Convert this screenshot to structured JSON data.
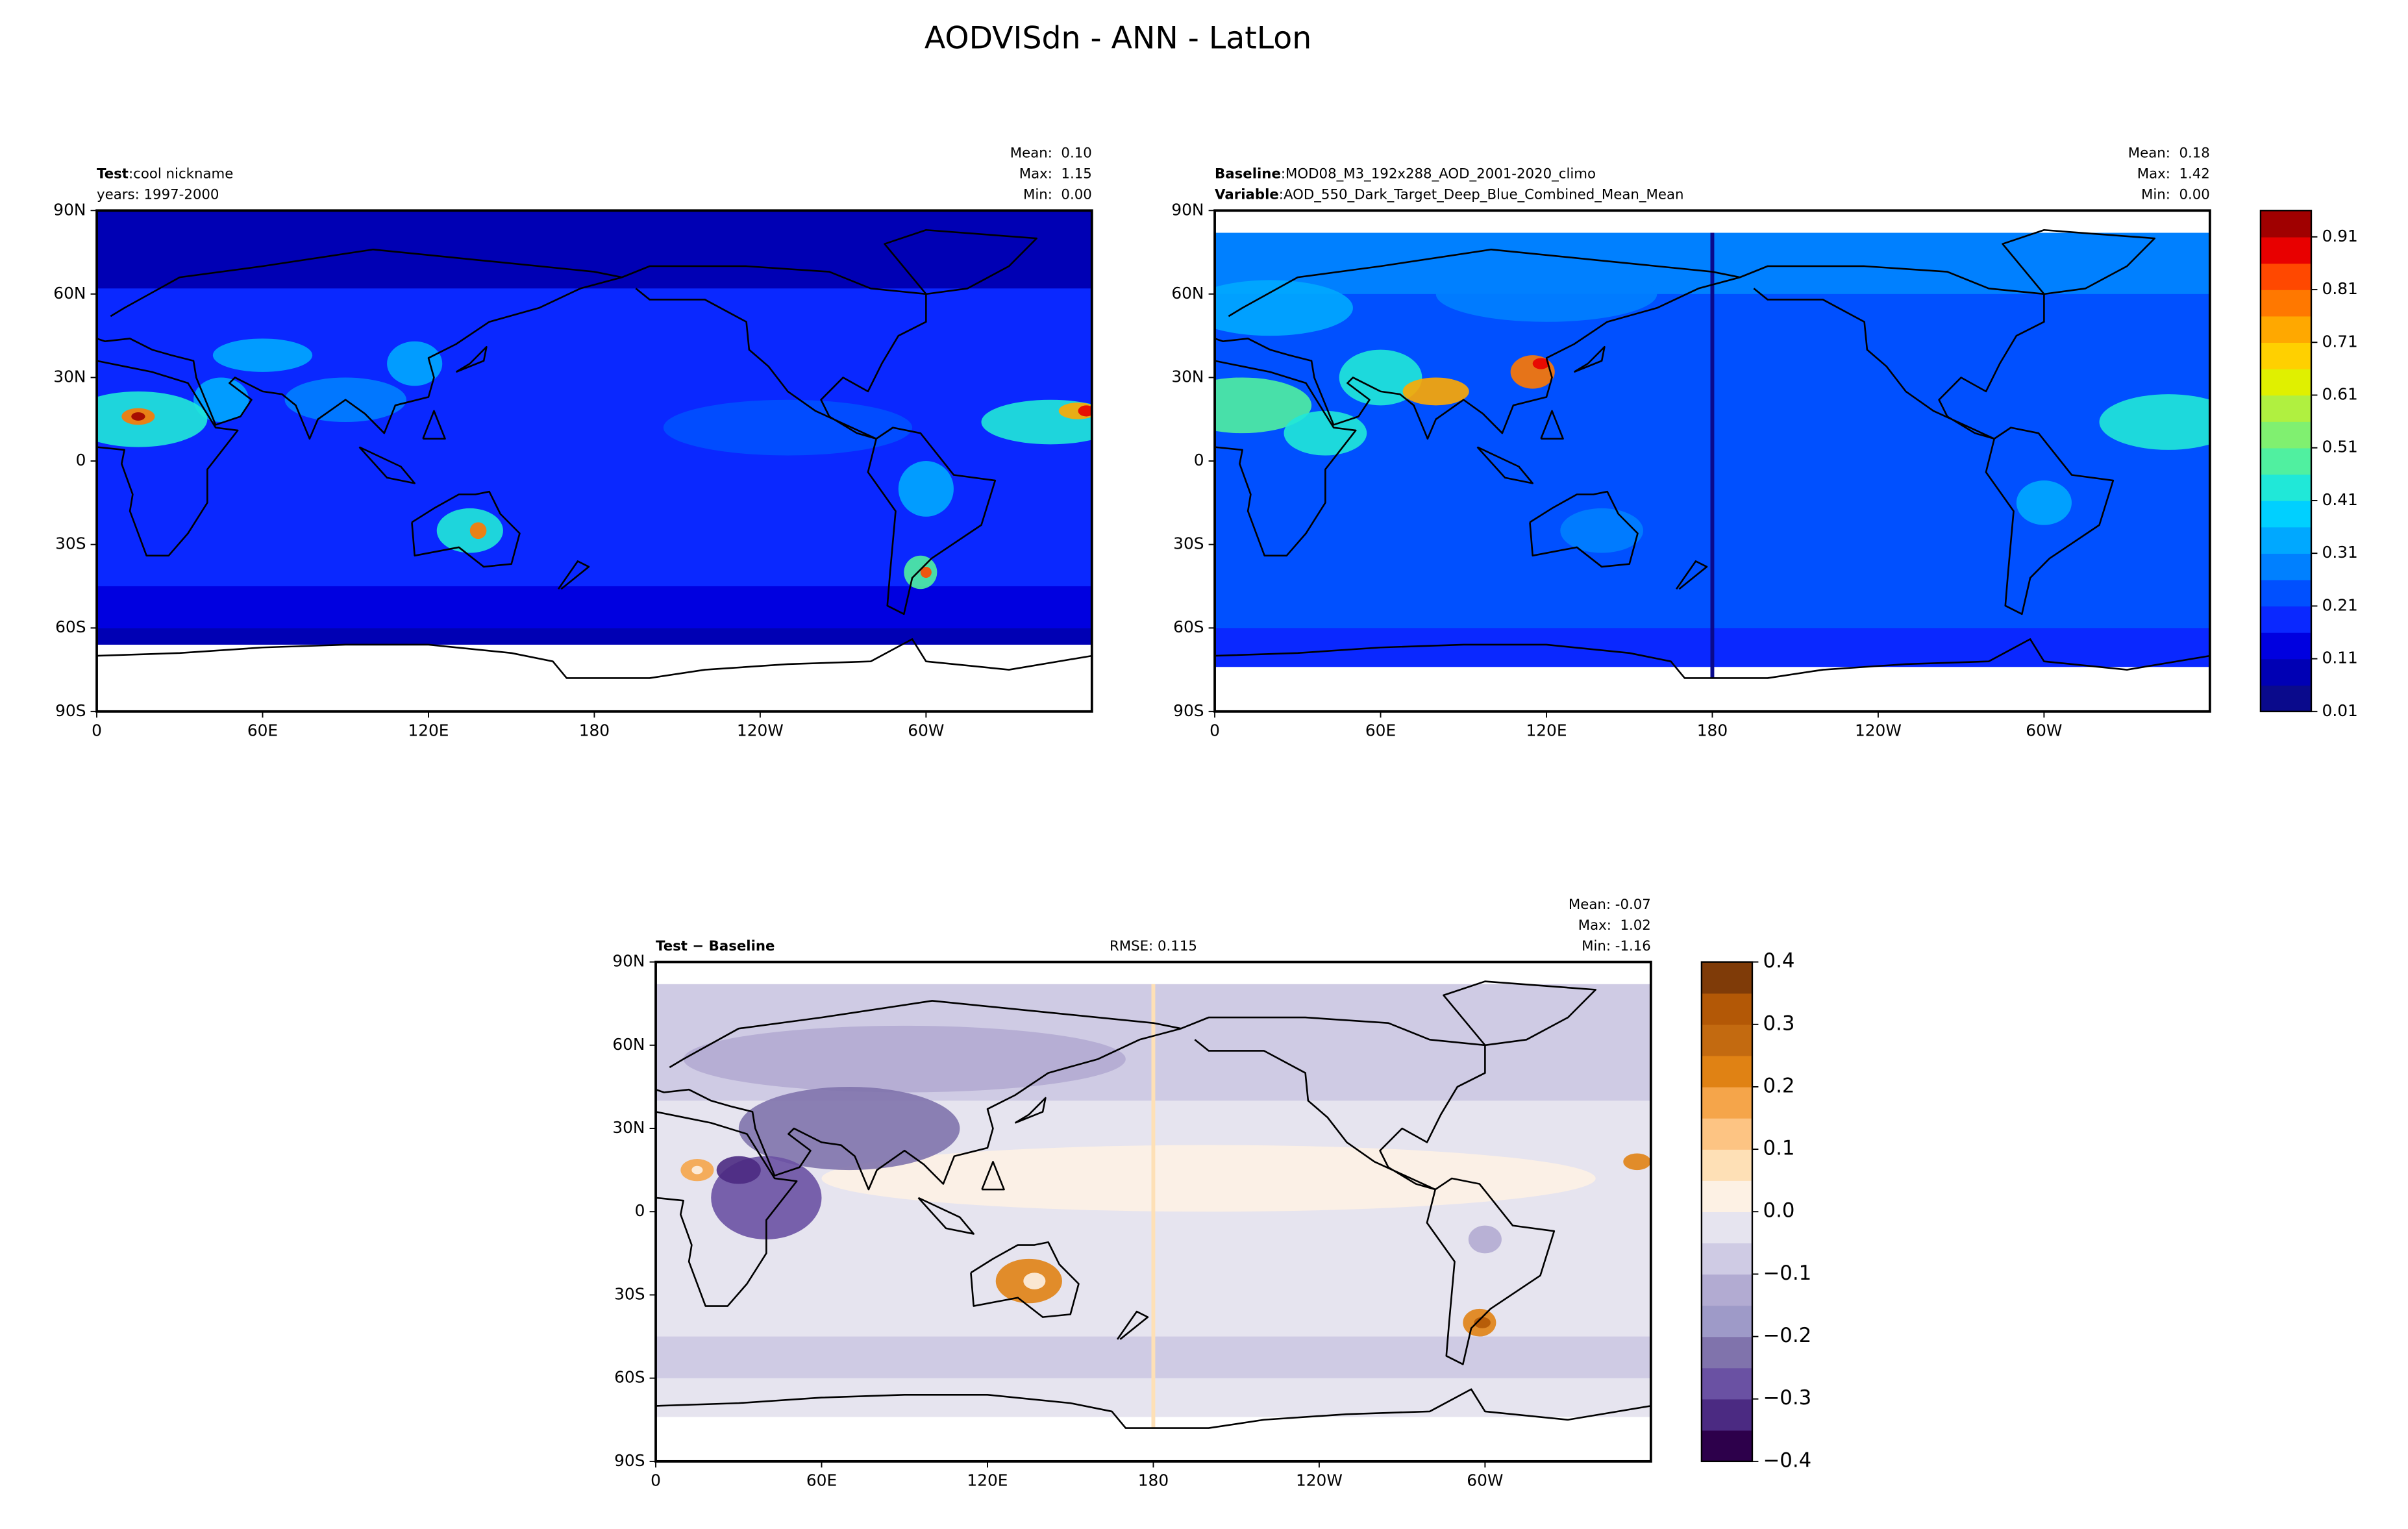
{
  "title": "AODVISdn - ANN - LatLon",
  "chart_data": [
    {
      "type": "map",
      "lines": [
        {
          "label": "Test",
          "text": "cool nickname"
        },
        {
          "text": "years: 1997-2000"
        }
      ],
      "separator": ":",
      "stats": [
        "Mean:  0.10",
        "Max:  1.15",
        "Min:  0.00"
      ],
      "xlim": [
        0,
        360
      ],
      "xticks": [
        0,
        {
          "value": 60,
          "label": "60E"
        },
        {
          "value": 120,
          "label": "120E"
        },
        180,
        {
          "value": 240,
          "label": "120W"
        },
        {
          "value": 300,
          "label": "60W"
        }
      ],
      "ylim": [
        -90,
        90
      ],
      "yticks": [
        {
          "value": -90,
          "label": "90S"
        },
        {
          "value": -60,
          "label": "60S"
        },
        {
          "value": -30,
          "label": "30S"
        },
        0,
        {
          "value": 30,
          "label": "30N"
        },
        {
          "value": 60,
          "label": "60N"
        },
        {
          "value": 90,
          "label": "90N"
        }
      ]
    },
    {
      "type": "map",
      "lines": [
        {
          "label": "Baseline",
          "text": "MOD08_M3_192x288_AOD_2001-2020_climo"
        },
        {
          "label": "Variable",
          "text": "AOD_550_Dark_Target_Deep_Blue_Combined_Mean_Mean"
        }
      ],
      "separator": ":",
      "stats": [
        "Mean:  0.18",
        "Max:  1.42",
        "Min:  0.00"
      ],
      "xlim": [
        0,
        360
      ],
      "xticks": [
        0,
        {
          "value": 60,
          "label": "60E"
        },
        {
          "value": 120,
          "label": "120E"
        },
        180,
        {
          "value": 240,
          "label": "120W"
        },
        {
          "value": 300,
          "label": "60W"
        }
      ],
      "ylim": [
        -90,
        90
      ],
      "yticks": [
        {
          "value": -90,
          "label": "90S"
        },
        {
          "value": -60,
          "label": "60S"
        },
        {
          "value": -30,
          "label": "30S"
        },
        0,
        {
          "value": 30,
          "label": "30N"
        },
        {
          "value": 60,
          "label": "60N"
        },
        {
          "value": 90,
          "label": "90N"
        }
      ],
      "colorbar": {
        "clim": [
          0.01,
          0.96
        ],
        "ticks": [
          0.01,
          0.11,
          0.21,
          0.31,
          0.41,
          0.51,
          0.61,
          0.71,
          0.81,
          0.91
        ],
        "colors": [
          "#0a0a8c",
          "#0000b4",
          "#0000e0",
          "#0a28ff",
          "#0050ff",
          "#0080ff",
          "#00a8ff",
          "#00d0ff",
          "#20e8d8",
          "#50f0a0",
          "#80f070",
          "#b0f040",
          "#e0f000",
          "#ffd000",
          "#ffa800",
          "#ff7800",
          "#ff4800",
          "#e80000",
          "#a00000"
        ]
      }
    },
    {
      "type": "map",
      "lines": [
        {
          "label": "Test − Baseline"
        }
      ],
      "rmse": "RMSE: 0.115",
      "stats": [
        "Mean: -0.07",
        "Max:  1.02",
        "Min: -1.16"
      ],
      "xlim": [
        0,
        360
      ],
      "xticks": [
        0,
        {
          "value": 60,
          "label": "60E"
        },
        {
          "value": 120,
          "label": "120E"
        },
        180,
        {
          "value": 240,
          "label": "120W"
        },
        {
          "value": 300,
          "label": "60W"
        }
      ],
      "ylim": [
        -90,
        90
      ],
      "yticks": [
        {
          "value": -90,
          "label": "90S"
        },
        {
          "value": -60,
          "label": "60S"
        },
        {
          "value": -30,
          "label": "30S"
        },
        0,
        {
          "value": 30,
          "label": "30N"
        },
        {
          "value": 60,
          "label": "60N"
        },
        {
          "value": 90,
          "label": "90N"
        }
      ],
      "colorbar": {
        "clim": [
          -0.4,
          0.4
        ],
        "ticks": [
          {
            "value": -0.4,
            "label": "−0.4"
          },
          {
            "value": -0.3,
            "label": "−0.3"
          },
          {
            "value": -0.2,
            "label": "−0.2"
          },
          {
            "value": -0.1,
            "label": "−0.1"
          },
          {
            "value": 0,
            "label": "0.0"
          },
          0.1,
          0.2,
          0.3,
          0.4
        ],
        "colors": [
          "#2d004b",
          "#4b2a82",
          "#6a51a3",
          "#8073ac",
          "#9e9ac8",
          "#b2abd2",
          "#cfcbe4",
          "#e6e4ef",
          "#fdf1e4",
          "#fee0b6",
          "#fdc483",
          "#f5a54a",
          "#e08214",
          "#c36a10",
          "#b35806",
          "#7f3b08"
        ]
      }
    }
  ]
}
